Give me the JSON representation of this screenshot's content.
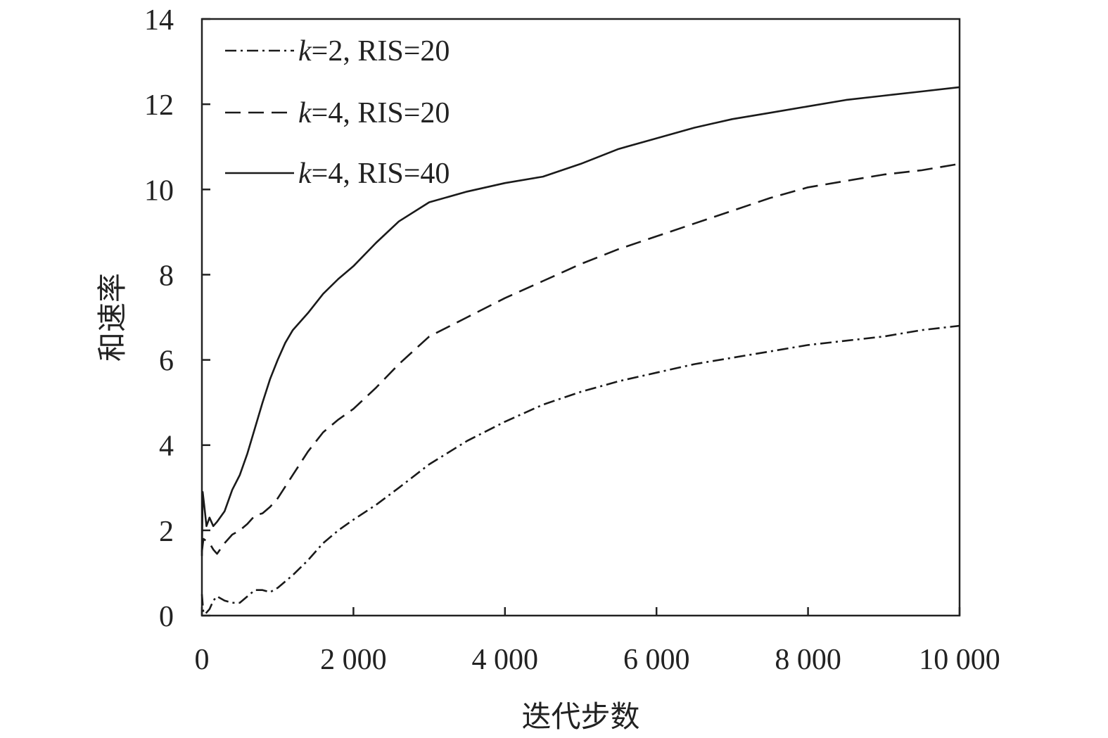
{
  "chart_data": {
    "type": "line",
    "title": "",
    "xlabel": "迭代步数",
    "ylabel": "和速率",
    "xlim": [
      0,
      10000
    ],
    "ylim": [
      0,
      14
    ],
    "xticks": [
      0,
      2000,
      4000,
      6000,
      8000,
      10000
    ],
    "xtick_labels": [
      "0",
      "2 000",
      "4 000",
      "6 000",
      "8 000",
      "10 000"
    ],
    "yticks": [
      0,
      2,
      4,
      6,
      8,
      10,
      12,
      14
    ],
    "ytick_labels": [
      "0",
      "2",
      "4",
      "6",
      "8",
      "10",
      "12",
      "14"
    ],
    "grid": false,
    "legend_position": "top-left",
    "series": [
      {
        "name": "k=2, RIS=20",
        "name_italic": "k",
        "name_rest": "=2, RIS=20",
        "dash": "dash-dot",
        "x": [
          0,
          20,
          50,
          100,
          150,
          200,
          300,
          400,
          500,
          600,
          700,
          800,
          900,
          1000,
          1200,
          1400,
          1600,
          1800,
          2000,
          2300,
          2600,
          3000,
          3500,
          4000,
          4500,
          5000,
          5500,
          6000,
          6500,
          7000,
          7500,
          8000,
          8500,
          9000,
          9500,
          10000
        ],
        "y": [
          0.5,
          0.05,
          0.05,
          0.15,
          0.35,
          0.45,
          0.35,
          0.3,
          0.3,
          0.45,
          0.6,
          0.6,
          0.55,
          0.65,
          0.95,
          1.3,
          1.7,
          2.0,
          2.25,
          2.6,
          3.0,
          3.55,
          4.1,
          4.55,
          4.95,
          5.25,
          5.5,
          5.7,
          5.9,
          6.05,
          6.2,
          6.35,
          6.45,
          6.55,
          6.7,
          6.8
        ]
      },
      {
        "name": "k=4, RIS=20",
        "name_italic": "k",
        "name_rest": "=4, RIS=20",
        "dash": "dashed",
        "x": [
          0,
          20,
          60,
          100,
          150,
          200,
          300,
          400,
          500,
          600,
          700,
          800,
          900,
          1000,
          1200,
          1400,
          1600,
          1800,
          2000,
          2300,
          2600,
          3000,
          3500,
          4000,
          4500,
          5000,
          5500,
          6000,
          6500,
          7000,
          7500,
          8000,
          8500,
          9000,
          9500,
          10000
        ],
        "y": [
          1.5,
          1.8,
          1.75,
          1.7,
          1.55,
          1.45,
          1.7,
          1.9,
          2.0,
          2.15,
          2.35,
          2.4,
          2.55,
          2.75,
          3.3,
          3.85,
          4.3,
          4.6,
          4.85,
          5.35,
          5.9,
          6.55,
          7.0,
          7.45,
          7.85,
          8.25,
          8.6,
          8.9,
          9.2,
          9.5,
          9.8,
          10.05,
          10.2,
          10.35,
          10.45,
          10.6
        ]
      },
      {
        "name": "k=4, RIS=40",
        "name_italic": "k",
        "name_rest": "=4, RIS=40",
        "dash": "solid",
        "x": [
          0,
          10,
          30,
          60,
          100,
          150,
          200,
          300,
          400,
          500,
          600,
          700,
          800,
          900,
          1000,
          1100,
          1200,
          1400,
          1600,
          1800,
          2000,
          2300,
          2600,
          3000,
          3500,
          4000,
          4500,
          5000,
          5500,
          6000,
          6500,
          7000,
          7500,
          8000,
          8500,
          9000,
          9500,
          10000
        ],
        "y": [
          1.4,
          2.9,
          2.6,
          2.1,
          2.3,
          2.1,
          2.2,
          2.45,
          2.95,
          3.3,
          3.8,
          4.4,
          5.0,
          5.55,
          6.0,
          6.4,
          6.7,
          7.1,
          7.55,
          7.9,
          8.2,
          8.75,
          9.25,
          9.7,
          9.95,
          10.15,
          10.3,
          10.6,
          10.95,
          11.2,
          11.45,
          11.65,
          11.8,
          11.95,
          12.1,
          12.2,
          12.3,
          12.4
        ]
      }
    ]
  }
}
